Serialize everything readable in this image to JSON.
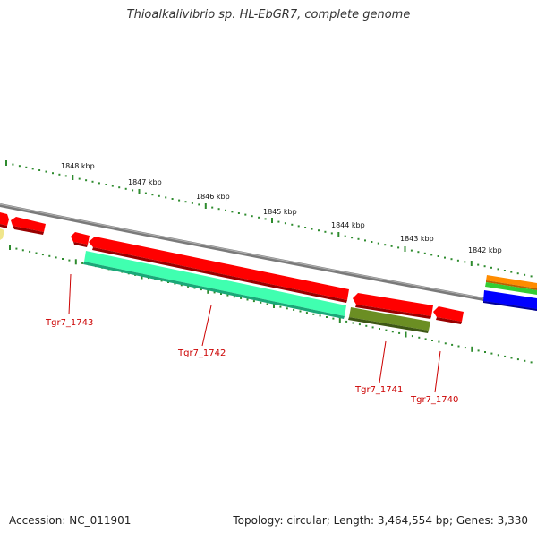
{
  "title": "Thioalkalivibrio sp. HL-EbGR7, complete genome",
  "footer": {
    "accession": "Accession: NC_011901",
    "summary": "Topology: circular; Length: 3,464,554 bp; Genes: 3,330"
  },
  "scale_labels": [
    "1848 kbp",
    "1847 kbp",
    "1846 kbp",
    "1845 kbp",
    "1844 kbp",
    "1843 kbp",
    "1842 kbp"
  ],
  "gene_labels": [
    "Tgr7_1743",
    "Tgr7_1742",
    "Tgr7_1741",
    "Tgr7_1740"
  ],
  "colors": {
    "backbone": "#808080",
    "cds_red": "#ff0000",
    "cds_green": "#40ffb0",
    "cds_olive": "#6b8e23",
    "tick_green": "#2e8b2e",
    "label_red": "#cc0000",
    "orange": "#ff8c00",
    "green": "#33cc33",
    "blue": "#0000ff",
    "yellow": "#f0e68c"
  }
}
